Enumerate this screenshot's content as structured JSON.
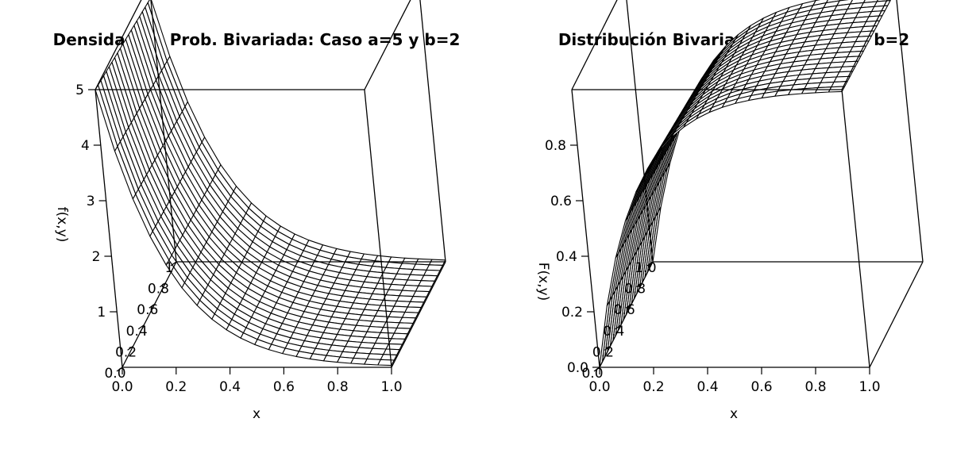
{
  "chart_data": [
    {
      "type": "surface",
      "title": "Densidad de Prob. Bivariada: Caso a=5 y b=2",
      "xlabel": "x",
      "ylabel": "",
      "zlabel": "f(x,y)",
      "x_ticks": [
        "0.0",
        "0.2",
        "0.4",
        "0.6",
        "0.8",
        "1.0"
      ],
      "y_ticks": [
        "0.0",
        "0.2",
        "0.4",
        "0.6",
        "0.8",
        "1"
      ],
      "z_ticks": [
        "1",
        "2",
        "3",
        "4",
        "5"
      ],
      "xlim": [
        0,
        1
      ],
      "ylim": [
        0,
        1
      ],
      "zlim": [
        0,
        5
      ],
      "grid": [
        20,
        20
      ],
      "function": "density",
      "a": 5,
      "b": 2,
      "samples": [
        {
          "x": 0.0,
          "z": 5.0
        },
        {
          "x": 0.2,
          "z": 3.0
        },
        {
          "x": 0.4,
          "z": 1.5
        },
        {
          "x": 0.6,
          "z": 0.9
        },
        {
          "x": 0.8,
          "z": 0.5
        },
        {
          "x": 1.0,
          "z": 0.3
        }
      ]
    },
    {
      "type": "surface",
      "title": "Distribución  Bivariada: Caso a=5 y b=2",
      "xlabel": "x",
      "ylabel": "",
      "zlabel": "F(x,y)",
      "x_ticks": [
        "0.0",
        "0.2",
        "0.4",
        "0.6",
        "0.8",
        "1.0"
      ],
      "y_ticks": [
        "0.0",
        "0.2",
        "0.4",
        "0.6",
        "0.8",
        "1.0"
      ],
      "z_ticks": [
        "0.0",
        "0.2",
        "0.4",
        "0.6",
        "0.8"
      ],
      "xlim": [
        0,
        1
      ],
      "ylim": [
        0,
        1
      ],
      "zlim": [
        0,
        1
      ],
      "grid": [
        20,
        20
      ],
      "function": "distribution",
      "a": 5,
      "b": 2,
      "samples": [
        {
          "x": 0.0,
          "z": 0.0
        },
        {
          "x": 0.2,
          "z": 0.63
        },
        {
          "x": 0.4,
          "z": 0.86
        },
        {
          "x": 0.6,
          "z": 0.95
        },
        {
          "x": 0.8,
          "z": 0.98
        },
        {
          "x": 1.0,
          "z": 1.0
        }
      ]
    }
  ]
}
